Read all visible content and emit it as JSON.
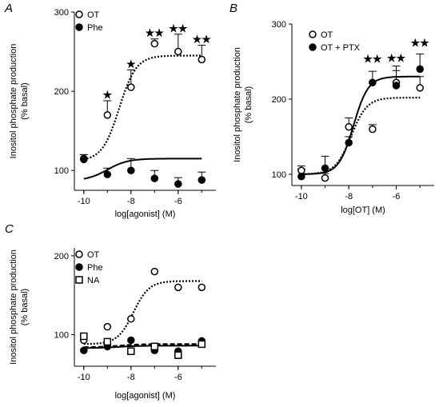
{
  "chart_data": [
    {
      "panel": "A",
      "type": "scatter",
      "xlabel": "log[agonist] (M)",
      "ylabel": [
        "Inositol phosphate production",
        "(% basal)"
      ],
      "xlim": [
        -10.4,
        -4.4
      ],
      "ylim": [
        75,
        300
      ],
      "xticks": [
        -10,
        -8,
        -6
      ],
      "yticks": [
        100,
        200,
        300
      ],
      "legend_position": "top-left",
      "series": [
        {
          "name": "OT",
          "marker": "open-circle",
          "fit": "dotted",
          "x": [
            -10,
            -9,
            -8,
            -7,
            -6,
            -5
          ],
          "y": [
            115,
            170,
            205,
            260,
            250,
            240
          ],
          "err": [
            5,
            18,
            22,
            6,
            22,
            18
          ],
          "fit_params": {
            "bottom": 112,
            "top": 245,
            "logec50": -8.5,
            "hill": 1.2
          }
        },
        {
          "name": "Phe",
          "marker": "filled-circle",
          "fit": "solid",
          "x": [
            -10,
            -9,
            -8,
            -7,
            -6,
            -5
          ],
          "y": [
            114,
            95,
            100,
            90,
            83,
            88
          ],
          "err": [
            6,
            8,
            15,
            10,
            8,
            10
          ],
          "fit_params": {
            "bottom": 87,
            "top": 115,
            "logec50": -9.0,
            "hill": 1.0
          }
        }
      ],
      "annotations": [
        {
          "x": -9,
          "y": 189,
          "text": "★"
        },
        {
          "x": -8,
          "y": 228,
          "text": "★"
        },
        {
          "x": -7,
          "y": 267,
          "text": "★★"
        },
        {
          "x": -6,
          "y": 273,
          "text": "★★"
        },
        {
          "x": -5,
          "y": 259,
          "text": "★★"
        }
      ]
    },
    {
      "panel": "B",
      "type": "scatter",
      "xlabel": "log[OT] (M)",
      "ylabel": [
        "Inositol phosphate production",
        "(% basal)"
      ],
      "xlim": [
        -10.4,
        -4.4
      ],
      "ylim": [
        85,
        300
      ],
      "xticks": [
        -10,
        -8,
        -6
      ],
      "yticks": [
        100,
        200,
        300
      ],
      "legend_position": "top-left",
      "series": [
        {
          "name": "OT",
          "marker": "open-circle",
          "fit": "dotted",
          "x": [
            -10,
            -9,
            -8,
            -7,
            -6,
            -5
          ],
          "y": [
            105,
            95,
            163,
            160,
            222,
            215
          ],
          "err": [
            6,
            6,
            12,
            6,
            22,
            15
          ],
          "fit_params": {
            "bottom": 100,
            "top": 202,
            "logec50": -7.9,
            "hill": 1.3
          }
        },
        {
          "name": "OT + PTX",
          "marker": "filled-circle",
          "fit": "solid",
          "x": [
            -10,
            -9,
            -8,
            -7,
            -6,
            -5
          ],
          "y": [
            97,
            108,
            142,
            222,
            218,
            240
          ],
          "err": [
            10,
            16,
            8,
            15,
            20,
            20
          ],
          "fit_params": {
            "bottom": 100,
            "top": 230,
            "logec50": -7.8,
            "hill": 1.4
          }
        }
      ],
      "annotations": [
        {
          "x": -7,
          "y": 247,
          "text": "★★"
        },
        {
          "x": -6,
          "y": 248,
          "text": "★★"
        },
        {
          "x": -5,
          "y": 268,
          "text": "★★"
        }
      ]
    },
    {
      "panel": "C",
      "type": "scatter",
      "xlabel": "log[agonist] (M)",
      "ylabel": [
        "Inositol phosphate production",
        "(% basal)"
      ],
      "xlim": [
        -10.4,
        -4.4
      ],
      "ylim": [
        60,
        210
      ],
      "xticks": [
        -10,
        -8,
        -6
      ],
      "yticks": [
        100,
        200
      ],
      "legend_position": "top-left",
      "series": [
        {
          "name": "OT",
          "marker": "open-circle",
          "fit": "dotted",
          "x": [
            -10,
            -9,
            -8,
            -7,
            -6,
            -5
          ],
          "y": [
            93,
            110,
            120,
            180,
            160,
            160
          ],
          "fit_params": {
            "bottom": 88,
            "top": 168,
            "logec50": -7.9,
            "hill": 1.3
          }
        },
        {
          "name": "Phe",
          "marker": "filled-circle",
          "fit": "solid",
          "x": [
            -10,
            -9,
            -8,
            -7,
            -6,
            -5
          ],
          "y": [
            80,
            85,
            93,
            80,
            79,
            92
          ],
          "fit_params": {
            "bottom": 83,
            "top": 86,
            "logec50": -8.5,
            "hill": 1.0
          }
        },
        {
          "name": "NA",
          "marker": "open-square",
          "fit": "dashed",
          "x": [
            -10,
            -9,
            -8,
            -7,
            -6,
            -5
          ],
          "y": [
            98,
            91,
            79,
            85,
            74,
            88
          ],
          "fit_params": {
            "bottom": 84,
            "top": 88,
            "logec50": -8.5,
            "hill": 1.0
          }
        }
      ],
      "annotations": []
    }
  ]
}
